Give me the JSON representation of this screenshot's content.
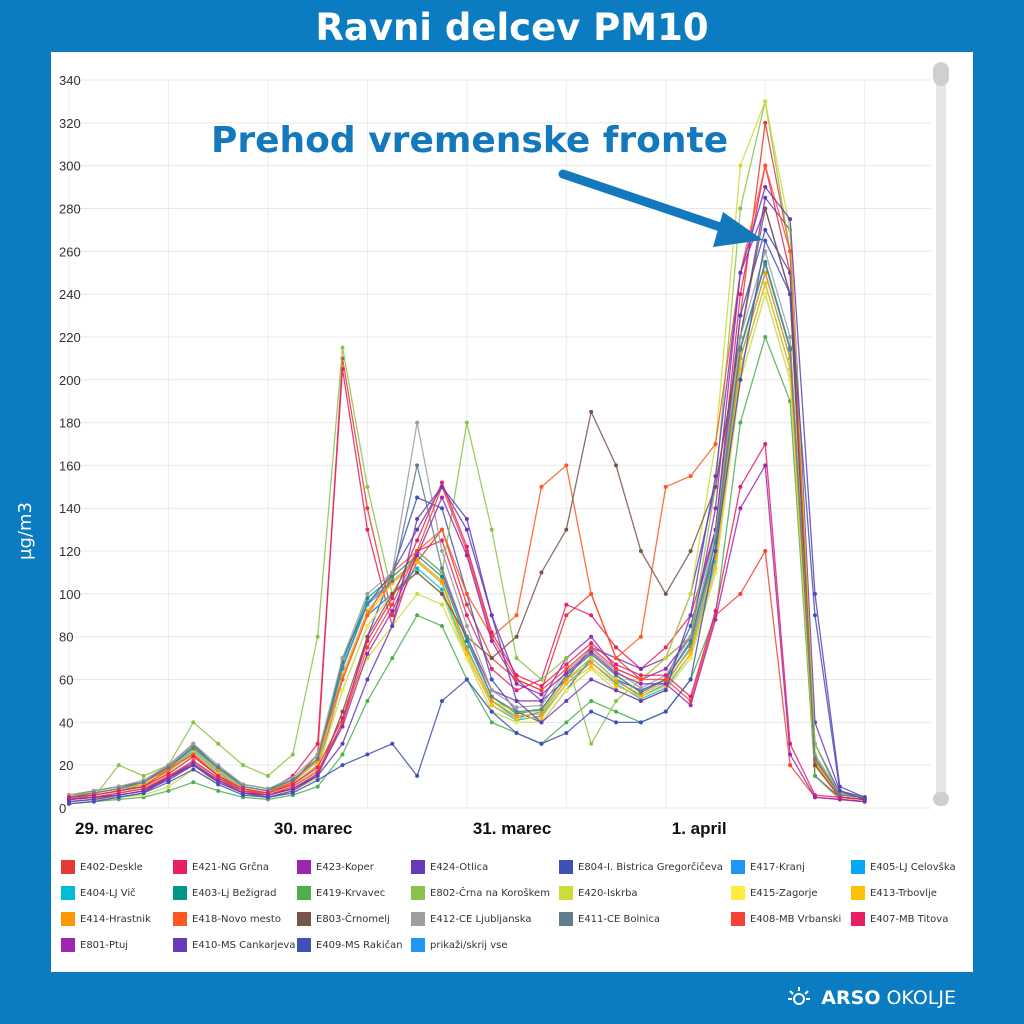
{
  "title": "Ravni delcev PM10",
  "ylabel": "µg/m3",
  "annotation": "Prehod vremenske fronte",
  "footer": {
    "brand": "ARSO",
    "brand2": "OKOLJE",
    "icon": "sun-icon"
  },
  "legend": [
    {
      "label": "E402-Deskle",
      "color": "#e53935"
    },
    {
      "label": "E421-NG Grčna",
      "color": "#e91e63"
    },
    {
      "label": "E423-Koper",
      "color": "#9c27b0"
    },
    {
      "label": "E424-Otlica",
      "color": "#673ab7"
    },
    {
      "label": "E804-I. Bistrica Gregorčičeva",
      "color": "#3f51b5"
    },
    {
      "label": "E417-Kranj",
      "color": "#2196f3"
    },
    {
      "label": "E405-LJ Celovška",
      "color": "#03a9f4"
    },
    {
      "label": "E404-LJ Vič",
      "color": "#00bcd4"
    },
    {
      "label": "E403-Lj Bežigrad",
      "color": "#009688"
    },
    {
      "label": "E419-Krvavec",
      "color": "#4caf50"
    },
    {
      "label": "E802-Črna na Koroškem",
      "color": "#8bc34a"
    },
    {
      "label": "E420-Iskrba",
      "color": "#cddc39"
    },
    {
      "label": "E415-Zagorje",
      "color": "#ffeb3b"
    },
    {
      "label": "E413-Trbovlje",
      "color": "#ffc107"
    },
    {
      "label": "E414-Hrastnik",
      "color": "#ff9800"
    },
    {
      "label": "E418-Novo mesto",
      "color": "#ff5722"
    },
    {
      "label": "E803-Črnomelj",
      "color": "#795548"
    },
    {
      "label": "E412-CE Ljubljanska",
      "color": "#9e9e9e"
    },
    {
      "label": "E411-CE Bolnica",
      "color": "#607d8b"
    },
    {
      "label": "E408-MB Vrbanski",
      "color": "#f44336"
    },
    {
      "label": "E407-MB Titova",
      "color": "#e91e63"
    },
    {
      "label": "E801-Ptuj",
      "color": "#9c27b0"
    },
    {
      "label": "E410-MS Cankarjeva",
      "color": "#673ab7"
    },
    {
      "label": "E409-MS Rakičan",
      "color": "#3f51b5"
    },
    {
      "label": "prikaži/skrij vse",
      "color": "#2196f3"
    }
  ],
  "chart_data": {
    "type": "line",
    "title": "Ravni delcev PM10",
    "ylabel": "µg/m3",
    "xlabel": "",
    "ylim": [
      0,
      340
    ],
    "yticks": [
      0,
      20,
      40,
      60,
      80,
      100,
      120,
      140,
      160,
      180,
      200,
      220,
      240,
      260,
      280,
      300,
      320,
      340
    ],
    "xticks": [
      {
        "label": "29. marec",
        "hour": 0
      },
      {
        "label": "30. marec",
        "hour": 24
      },
      {
        "label": "31. marec",
        "hour": 48
      },
      {
        "label": "1. april",
        "hour": 72
      }
    ],
    "grid": true,
    "hours": [
      0,
      3,
      6,
      9,
      12,
      15,
      18,
      21,
      24,
      27,
      30,
      33,
      36,
      39,
      42,
      45,
      48,
      51,
      54,
      57,
      60,
      63,
      66,
      69,
      72,
      75,
      78,
      81,
      84,
      87,
      90,
      93,
      96
    ],
    "series": [
      {
        "name": "E402-Deskle",
        "color": "#e53935",
        "values": [
          5,
          6,
          8,
          10,
          18,
          25,
          15,
          8,
          7,
          12,
          25,
          210,
          140,
          90,
          115,
          130,
          95,
          70,
          60,
          55,
          90,
          100,
          70,
          60,
          70,
          80,
          120,
          230,
          320,
          260,
          20,
          5,
          4
        ]
      },
      {
        "name": "E421-NG Grčna",
        "color": "#e91e63",
        "values": [
          6,
          8,
          10,
          12,
          20,
          30,
          18,
          10,
          8,
          15,
          30,
          205,
          130,
          85,
          120,
          125,
          90,
          65,
          55,
          60,
          95,
          90,
          75,
          65,
          75,
          90,
          130,
          240,
          300,
          250,
          15,
          5,
          4
        ]
      },
      {
        "name": "E423-Koper",
        "color": "#9c27b0",
        "values": [
          4,
          5,
          6,
          8,
          15,
          20,
          12,
          7,
          6,
          10,
          18,
          60,
          90,
          100,
          120,
          110,
          80,
          55,
          50,
          50,
          70,
          80,
          65,
          60,
          65,
          80,
          140,
          250,
          280,
          240,
          25,
          6,
          5
        ]
      },
      {
        "name": "E424-Otlica",
        "color": "#673ab7",
        "values": [
          3,
          4,
          5,
          7,
          14,
          22,
          14,
          8,
          6,
          9,
          15,
          40,
          80,
          110,
          130,
          150,
          130,
          90,
          60,
          50,
          60,
          75,
          70,
          65,
          70,
          100,
          150,
          220,
          285,
          270,
          40,
          8,
          5
        ]
      },
      {
        "name": "E804-I. Bistrica Gregorčičeva",
        "color": "#3f51b5",
        "values": [
          5,
          7,
          9,
          11,
          17,
          26,
          16,
          9,
          7,
          11,
          20,
          70,
          95,
          110,
          145,
          140,
          100,
          60,
          45,
          40,
          55,
          70,
          60,
          55,
          60,
          85,
          130,
          230,
          270,
          250,
          30,
          7,
          5
        ]
      },
      {
        "name": "E417-Kranj",
        "color": "#2196f3",
        "values": [
          4,
          6,
          8,
          10,
          16,
          24,
          15,
          9,
          7,
          10,
          18,
          55,
          85,
          100,
          110,
          100,
          70,
          45,
          40,
          40,
          55,
          65,
          55,
          50,
          55,
          70,
          110,
          200,
          240,
          200,
          20,
          6,
          5
        ]
      },
      {
        "name": "E405-LJ Celovška",
        "color": "#03a9f4",
        "values": [
          6,
          7,
          9,
          12,
          18,
          28,
          18,
          10,
          8,
          12,
          22,
          65,
          95,
          105,
          115,
          105,
          75,
          50,
          42,
          45,
          60,
          70,
          60,
          52,
          58,
          75,
          120,
          210,
          250,
          210,
          22,
          6,
          5
        ]
      },
      {
        "name": "E404-LJ Vič",
        "color": "#00bcd4",
        "values": [
          5,
          6,
          8,
          11,
          17,
          27,
          17,
          9,
          7,
          11,
          20,
          60,
          90,
          100,
          112,
          102,
          72,
          48,
          41,
          43,
          58,
          68,
          58,
          51,
          56,
          72,
          115,
          205,
          245,
          205,
          21,
          6,
          5
        ]
      },
      {
        "name": "E403-Lj Bežigrad",
        "color": "#009688",
        "values": [
          6,
          8,
          10,
          12,
          19,
          29,
          19,
          11,
          9,
          13,
          23,
          68,
          98,
          108,
          118,
          108,
          78,
          52,
          44,
          46,
          62,
          72,
          62,
          54,
          60,
          78,
          125,
          215,
          255,
          215,
          23,
          7,
          5
        ]
      },
      {
        "name": "E419-Krvavec",
        "color": "#4caf50",
        "values": [
          2,
          3,
          4,
          5,
          8,
          12,
          8,
          5,
          4,
          6,
          10,
          25,
          50,
          70,
          90,
          85,
          60,
          40,
          35,
          30,
          40,
          50,
          45,
          40,
          45,
          60,
          90,
          180,
          220,
          190,
          15,
          4,
          3
        ]
      },
      {
        "name": "E802-Črna na Koroškem",
        "color": "#8bc34a",
        "values": [
          4,
          5,
          20,
          15,
          20,
          40,
          30,
          20,
          15,
          25,
          80,
          215,
          150,
          100,
          120,
          110,
          180,
          130,
          70,
          60,
          70,
          30,
          50,
          60,
          70,
          80,
          150,
          280,
          330,
          260,
          30,
          5,
          4
        ]
      },
      {
        "name": "E420-Iskrba",
        "color": "#cddc39",
        "values": [
          3,
          4,
          5,
          6,
          10,
          18,
          12,
          7,
          5,
          8,
          14,
          45,
          70,
          85,
          100,
          95,
          70,
          50,
          45,
          45,
          60,
          70,
          60,
          60,
          70,
          100,
          170,
          300,
          330,
          270,
          25,
          5,
          4
        ]
      },
      {
        "name": "E415-Zagorje",
        "color": "#ffeb3b",
        "values": [
          5,
          6,
          8,
          10,
          16,
          24,
          15,
          9,
          7,
          10,
          18,
          55,
          85,
          100,
          110,
          100,
          70,
          45,
          40,
          40,
          55,
          65,
          55,
          50,
          55,
          70,
          110,
          200,
          240,
          200,
          20,
          6,
          5
        ]
      },
      {
        "name": "E413-Trbovlje",
        "color": "#ffc107",
        "values": [
          5,
          7,
          9,
          11,
          17,
          26,
          16,
          9,
          7,
          11,
          20,
          60,
          90,
          105,
          115,
          105,
          72,
          48,
          42,
          42,
          58,
          66,
          57,
          52,
          57,
          72,
          112,
          205,
          245,
          205,
          21,
          6,
          5
        ]
      },
      {
        "name": "E414-Hrastnik",
        "color": "#ff9800",
        "values": [
          6,
          7,
          9,
          12,
          18,
          28,
          18,
          10,
          8,
          12,
          22,
          62,
          92,
          106,
          116,
          106,
          74,
          50,
          43,
          44,
          60,
          68,
          59,
          53,
          59,
          74,
          118,
          210,
          250,
          210,
          22,
          6,
          5
        ]
      },
      {
        "name": "E418-Novo mesto",
        "color": "#ff5722",
        "values": [
          5,
          6,
          8,
          10,
          18,
          25,
          15,
          8,
          7,
          12,
          25,
          60,
          90,
          110,
          120,
          130,
          100,
          80,
          90,
          150,
          160,
          100,
          70,
          80,
          150,
          155,
          170,
          250,
          300,
          260,
          20,
          5,
          4
        ]
      },
      {
        "name": "E803-Črnomelj",
        "color": "#795548",
        "values": [
          4,
          5,
          7,
          9,
          14,
          20,
          13,
          8,
          6,
          9,
          15,
          45,
          80,
          100,
          110,
          100,
          80,
          70,
          80,
          110,
          130,
          185,
          160,
          120,
          100,
          120,
          150,
          220,
          280,
          240,
          20,
          5,
          4
        ]
      },
      {
        "name": "E412-CE Ljubljanska",
        "color": "#9e9e9e",
        "values": [
          6,
          8,
          10,
          13,
          20,
          30,
          20,
          11,
          9,
          14,
          25,
          70,
          100,
          110,
          180,
          120,
          85,
          55,
          47,
          48,
          64,
          74,
          64,
          56,
          62,
          80,
          128,
          220,
          260,
          220,
          24,
          7,
          5
        ]
      },
      {
        "name": "E411-CE Bolnica",
        "color": "#607d8b",
        "values": [
          5,
          7,
          9,
          12,
          19,
          28,
          19,
          10,
          8,
          13,
          23,
          66,
          96,
          106,
          160,
          112,
          80,
          52,
          45,
          46,
          62,
          72,
          62,
          54,
          60,
          77,
          124,
          214,
          254,
          214,
          23,
          6,
          5
        ]
      },
      {
        "name": "E408-MB Vrbanski",
        "color": "#f44336",
        "values": [
          4,
          5,
          7,
          9,
          15,
          22,
          14,
          8,
          6,
          10,
          17,
          40,
          75,
          95,
          120,
          150,
          120,
          80,
          60,
          55,
          65,
          75,
          65,
          60,
          60,
          50,
          90,
          100,
          120,
          20,
          5,
          4,
          3
        ]
      },
      {
        "name": "E407-MB Titova",
        "color": "#e91e63",
        "values": [
          5,
          6,
          8,
          10,
          16,
          24,
          15,
          9,
          7,
          11,
          19,
          42,
          78,
          98,
          125,
          152,
          122,
          82,
          62,
          57,
          67,
          77,
          67,
          62,
          62,
          52,
          92,
          150,
          170,
          30,
          6,
          5,
          4
        ]
      },
      {
        "name": "E801-Ptuj",
        "color": "#9c27b0",
        "values": [
          4,
          5,
          6,
          8,
          14,
          21,
          13,
          7,
          6,
          9,
          16,
          38,
          72,
          92,
          118,
          145,
          118,
          78,
          58,
          53,
          63,
          73,
          63,
          58,
          58,
          48,
          88,
          140,
          160,
          25,
          5,
          4,
          3
        ]
      },
      {
        "name": "E410-MS Cankarjeva",
        "color": "#673ab7",
        "values": [
          3,
          4,
          6,
          8,
          13,
          20,
          12,
          7,
          5,
          8,
          15,
          30,
          60,
          85,
          135,
          150,
          135,
          90,
          50,
          40,
          50,
          60,
          55,
          50,
          55,
          90,
          155,
          250,
          290,
          275,
          100,
          10,
          5
        ]
      },
      {
        "name": "E409-MS Rakičan",
        "color": "#3f51b5",
        "values": [
          2,
          3,
          5,
          7,
          12,
          18,
          11,
          6,
          5,
          7,
          13,
          20,
          25,
          30,
          15,
          50,
          60,
          45,
          35,
          30,
          35,
          45,
          40,
          40,
          45,
          60,
          120,
          200,
          265,
          240,
          90,
          8,
          4
        ]
      }
    ]
  }
}
